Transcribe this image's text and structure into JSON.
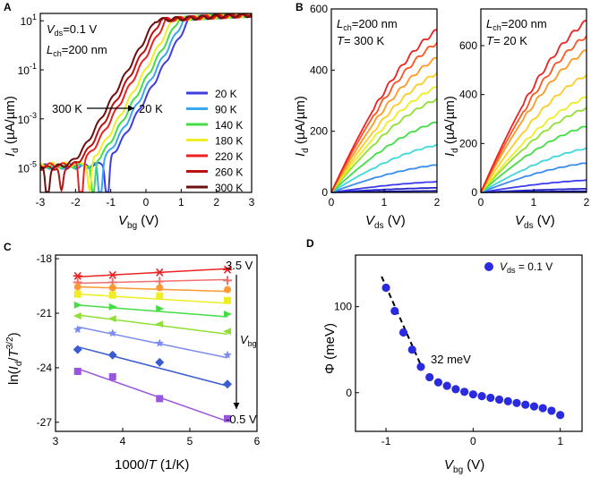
{
  "chart_data": [
    {
      "panel": "A",
      "type": "line",
      "yscale": "log",
      "annotations": {
        "vds": "0.1 V",
        "lch": "200 nm",
        "arrow_from": "300 K",
        "arrow_to": "20 K"
      },
      "xlabel": "V_bg (V)",
      "ylabel": "I_d (µA/µm)",
      "xlim": [
        -3,
        3
      ],
      "ylim": [
        1e-06,
        20
      ],
      "xticks": [
        "-3",
        "-2",
        "-1",
        "0",
        "1",
        "2",
        "3"
      ],
      "yticks": [
        {
          "base": "10",
          "exp": "1",
          "value": 10
        },
        {
          "base": "10",
          "exp": "-1",
          "value": 0.1
        },
        {
          "base": "10",
          "exp": "-3",
          "value": 0.001
        },
        {
          "base": "10",
          "exp": "-5",
          "value": 1e-05
        }
      ],
      "legend": [
        "20 K",
        "90 K",
        "140 K",
        "180 K",
        "220 K",
        "260 K",
        "300 K"
      ],
      "series": [
        {
          "name": "20 K",
          "color": "#3d3de0",
          "vth": -0.95,
          "offf": 1.2e-05,
          "dipx": -1.1,
          "dipd": 2
        },
        {
          "name": "90 K",
          "color": "#38a8f0",
          "vth": -1.1,
          "offf": 1.1e-05,
          "dipx": -1.3,
          "dipd": 1.8
        },
        {
          "name": "140 K",
          "color": "#44dd44",
          "vth": -1.25,
          "offf": 1.2e-05,
          "dipx": -1.5,
          "dipd": 1.5
        },
        {
          "name": "180 K",
          "color": "#eeee22",
          "vth": -1.4,
          "offf": 1.4e-05,
          "dipx": -1.6,
          "dipd": 1.3
        },
        {
          "name": "220 K",
          "color": "#ee2222",
          "vth": -1.6,
          "offf": 1.3e-05,
          "dipx": -1.85,
          "dipd": 2.2
        },
        {
          "name": "260 K",
          "color": "#bb1111",
          "vth": -1.75,
          "offf": 1e-05,
          "dipx": -2.4,
          "dipd": 1.0
        },
        {
          "name": "300 K",
          "color": "#6b0f0f",
          "vth": -1.9,
          "offf": 1.1e-05,
          "dipx": -2.8,
          "dipd": 1.7
        }
      ]
    },
    {
      "panel": "B1",
      "type": "line",
      "annotations": {
        "lch": "200 nm",
        "temp": "300 K"
      },
      "xlabel": "V_ds (V)",
      "ylabel": "I_d (µA/µm)",
      "xlim": [
        0,
        2
      ],
      "ylim": [
        0,
        600
      ],
      "xticks": [
        "0",
        "1",
        "2"
      ],
      "yticks": [
        "0",
        "200",
        "400",
        "600"
      ],
      "series_end_values": [
        5,
        15,
        35,
        90,
        155,
        230,
        305,
        345,
        390,
        440,
        490,
        530
      ],
      "colors": [
        "#1c1c9c",
        "#2626cc",
        "#3b3bf0",
        "#3a8cf0",
        "#3fd8d8",
        "#44dd44",
        "#8fe033",
        "#eeee22",
        "#ffcc22",
        "#ff9922",
        "#ff5522",
        "#ee2222"
      ]
    },
    {
      "panel": "B2",
      "type": "line",
      "annotations": {
        "lch": "200 nm",
        "temp": "20 K"
      },
      "xlabel": "V_ds (V)",
      "ylabel": "I_d (µA/µm)",
      "xlim": [
        0,
        2
      ],
      "ylim": [
        0,
        750
      ],
      "xticks": [
        "0",
        "1",
        "2"
      ],
      "yticks": [
        "0",
        "200",
        "400",
        "600"
      ],
      "series_end_values": [
        5,
        15,
        50,
        120,
        180,
        270,
        345,
        390,
        480,
        580,
        640,
        700
      ],
      "colors": [
        "#1c1c9c",
        "#2626cc",
        "#3b3bf0",
        "#3a8cf0",
        "#3fd8d8",
        "#44dd44",
        "#8fe033",
        "#eeee22",
        "#ffcc22",
        "#ff9922",
        "#ff5522",
        "#ee2222"
      ]
    },
    {
      "panel": "C",
      "type": "scatter",
      "xlabel": "1000/T (1/K)",
      "ylabel": "ln(I_d/T^3/2)",
      "xlim": [
        3,
        6
      ],
      "ylim": [
        -27.5,
        -17.8
      ],
      "xticks": [
        "3",
        "4",
        "5",
        "6"
      ],
      "yticks": [
        "-18",
        "-21",
        "-24",
        "-27"
      ],
      "x": [
        3.33,
        3.85,
        4.55,
        5.56
      ],
      "labels": {
        "top": "3.5 V",
        "bottom": "-0.5 V",
        "arrow": "V_bg"
      },
      "series": [
        {
          "color": "#ee2222",
          "marker": "asterisk",
          "values": [
            -18.95,
            -18.9,
            -18.75,
            -18.6
          ],
          "fit": [
            -19.0,
            -18.55
          ]
        },
        {
          "color": "#f07070",
          "marker": "plus",
          "values": [
            -19.3,
            -19.3,
            -19.25,
            -19.2
          ],
          "fit": [
            -19.35,
            -19.15
          ]
        },
        {
          "color": "#ff9933",
          "marker": "circle",
          "values": [
            -19.55,
            -19.6,
            -19.6,
            -19.7
          ],
          "fit": [
            -19.55,
            -19.8
          ]
        },
        {
          "color": "#eeee22",
          "marker": "square",
          "values": [
            -19.95,
            -20.0,
            -20.05,
            -20.3
          ],
          "fit": [
            -19.95,
            -20.45
          ]
        },
        {
          "color": "#44dd44",
          "marker": "triangle-right",
          "values": [
            -20.55,
            -20.65,
            -20.75,
            -21.05
          ],
          "fit": [
            -20.55,
            -21.2
          ]
        },
        {
          "color": "#8fe033",
          "marker": "triangle-left",
          "values": [
            -21.15,
            -21.3,
            -21.6,
            -22.0
          ],
          "fit": [
            -21.1,
            -22.15
          ]
        },
        {
          "color": "#7d8cf0",
          "marker": "star",
          "values": [
            -21.9,
            -22.1,
            -22.65,
            -23.3
          ],
          "fit": [
            -21.75,
            -23.45
          ]
        },
        {
          "color": "#3b5bd0",
          "marker": "diamond",
          "values": [
            -23.0,
            -23.3,
            -23.7,
            -24.9
          ],
          "fit": [
            -22.85,
            -25.0
          ]
        },
        {
          "color": "#9955dd",
          "marker": "square",
          "values": [
            -24.2,
            -24.5,
            -25.7,
            -26.8
          ],
          "fit": [
            -24.05,
            -26.95
          ]
        }
      ]
    },
    {
      "panel": "D",
      "type": "scatter",
      "xlabel": "V_bg (V)",
      "ylabel": "Φ (meV)",
      "xlim": [
        -1.35,
        1.25
      ],
      "ylim": [
        -45,
        160
      ],
      "xticks": [
        "-1",
        "0",
        "1"
      ],
      "yticks": [
        "0",
        "100"
      ],
      "legend": "V_ds = 0.1 V",
      "annotation": "32 meV",
      "points_x": [
        -1.0,
        -0.9,
        -0.8,
        -0.7,
        -0.6,
        -0.5,
        -0.4,
        -0.3,
        -0.2,
        -0.1,
        0.0,
        0.1,
        0.2,
        0.3,
        0.4,
        0.5,
        0.6,
        0.7,
        0.8,
        0.9,
        1.0
      ],
      "points_y": [
        122,
        95,
        70,
        50,
        30,
        18,
        12,
        8,
        4,
        1,
        -2,
        -4,
        -6,
        -8,
        -10,
        -12,
        -14,
        -16,
        -18,
        -21,
        -26
      ],
      "fit_x": [
        -1.05,
        -0.6
      ],
      "fit_y": [
        135,
        32
      ]
    }
  ]
}
